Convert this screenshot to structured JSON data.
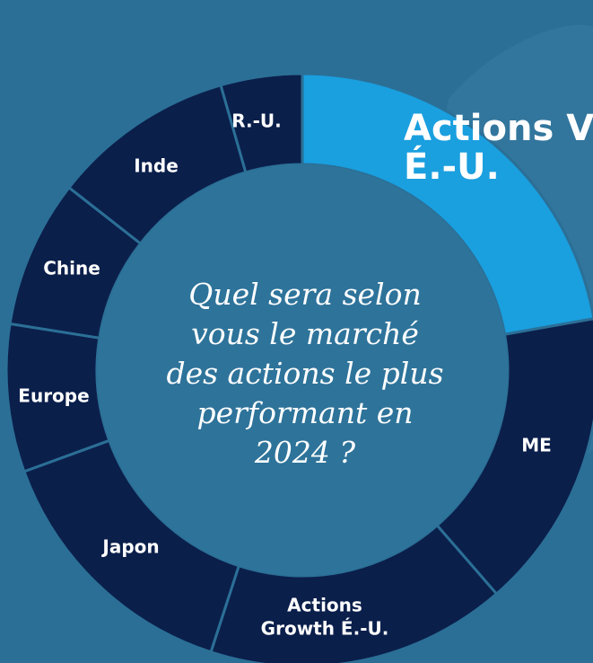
{
  "wheel": {
    "highlight": {
      "lines": [
        "Actions V",
        "É.-U."
      ]
    },
    "segments": [
      {
        "lines": [
          "ME"
        ]
      },
      {
        "lines": [
          "Actions",
          "Growth É.-U."
        ]
      },
      {
        "lines": [
          "Japon"
        ]
      },
      {
        "lines": [
          "Europe"
        ]
      },
      {
        "lines": [
          "Chine"
        ]
      },
      {
        "lines": [
          "Inde"
        ]
      },
      {
        "lines": [
          "R.-U."
        ]
      }
    ],
    "question": [
      "Quel sera selon",
      "vous le marché",
      "des actions le plus",
      "performant en",
      "2024 ?"
    ]
  }
}
